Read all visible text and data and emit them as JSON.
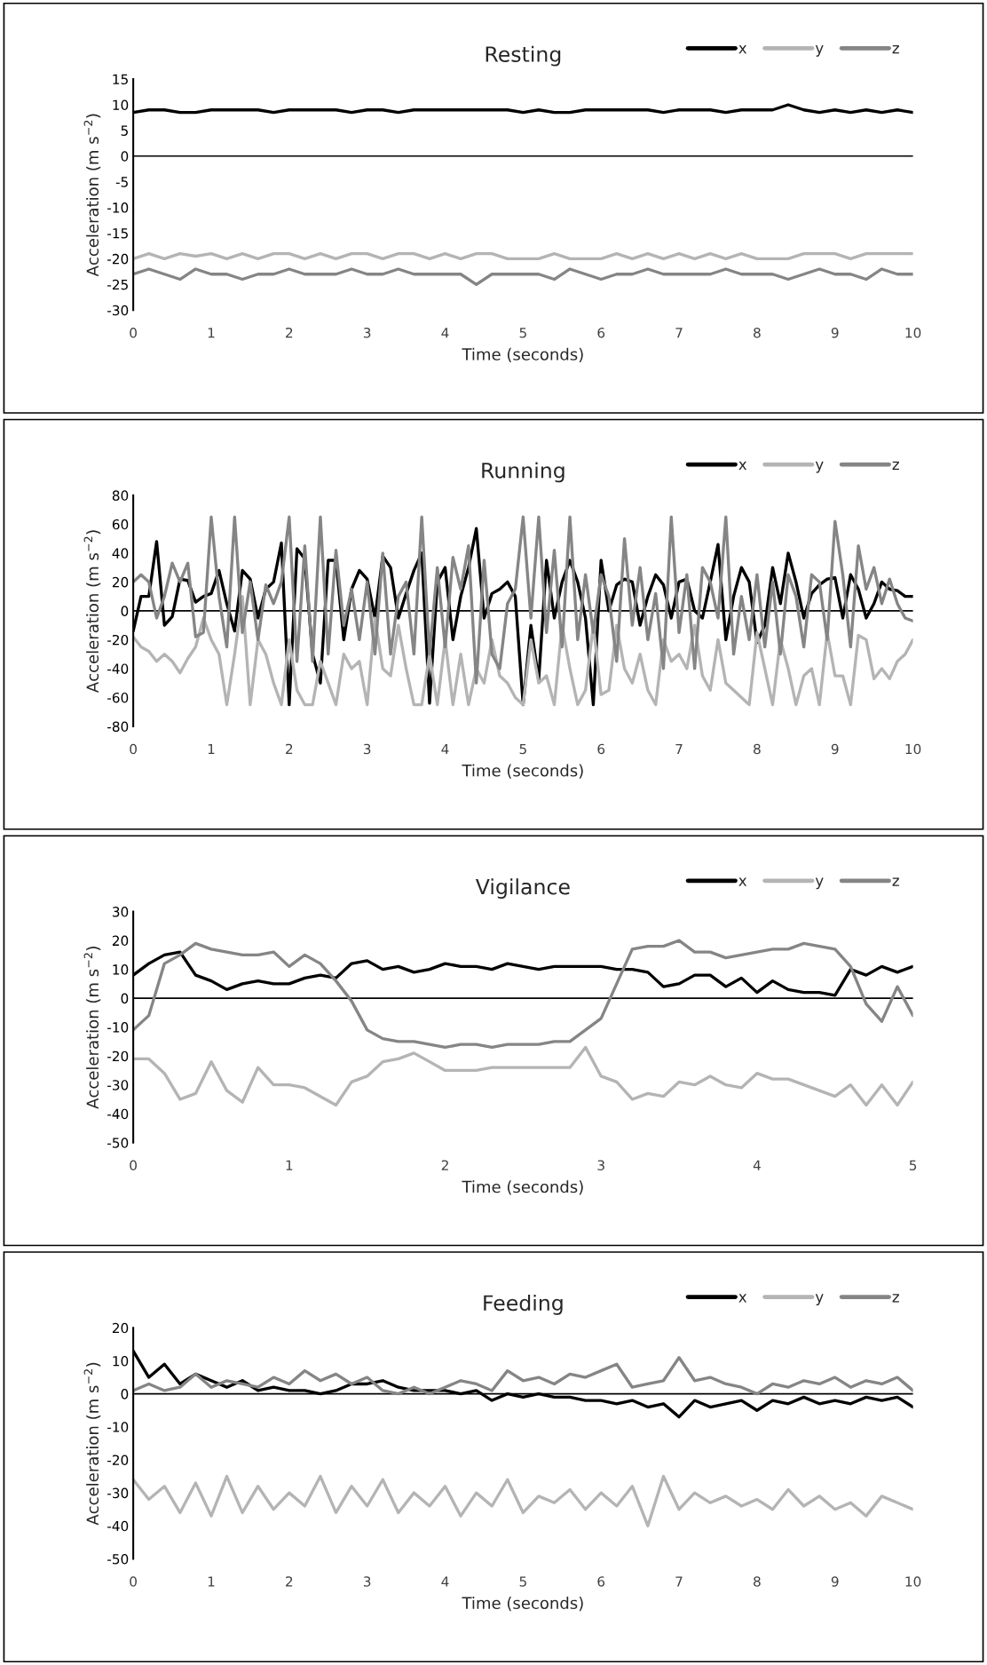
{
  "chart_data": [
    {
      "type": "line",
      "title": "Resting",
      "xlabel": "Time (seconds)",
      "ylabel": "Acceleration (m s$^{−2}$)",
      "xlim": [
        0,
        10
      ],
      "xticks": [
        0,
        1,
        2,
        3,
        4,
        5,
        6,
        7,
        8,
        9,
        10
      ],
      "ylim": [
        -30,
        15
      ],
      "yticks": [
        -30,
        -25,
        -20,
        -15,
        -10,
        -5,
        0,
        5,
        10,
        15
      ],
      "legend": "top right",
      "grid": false,
      "ref_lines": [
        {
          "axis": "y",
          "value": 0,
          "color": "#000000"
        }
      ],
      "x": [
        0,
        0.2,
        0.4,
        0.6,
        0.8,
        1,
        1.2,
        1.4,
        1.6,
        1.8,
        2,
        2.2,
        2.4,
        2.6,
        2.8,
        3,
        3.2,
        3.4,
        3.6,
        3.8,
        4,
        4.2,
        4.4,
        4.6,
        4.8,
        5,
        5.2,
        5.4,
        5.6,
        5.8,
        6,
        6.2,
        6.4,
        6.6,
        6.8,
        7,
        7.2,
        7.4,
        7.6,
        7.8,
        8,
        8.2,
        8.4,
        8.6,
        8.8,
        9,
        9.2,
        9.4,
        9.6,
        9.8,
        10
      ],
      "series": [
        {
          "name": "x",
          "color": "#000000",
          "values": [
            8.5,
            9,
            9,
            8.5,
            8.5,
            9,
            9,
            9,
            9,
            8.5,
            9,
            9,
            9,
            9,
            8.5,
            9,
            9,
            8.5,
            9,
            9,
            9,
            9,
            9,
            9,
            9,
            8.5,
            9,
            8.5,
            8.5,
            9,
            9,
            9,
            9,
            9,
            8.5,
            9,
            9,
            9,
            8.5,
            9,
            9,
            9,
            10,
            9,
            8.5,
            9,
            8.5,
            9,
            8.5,
            9,
            8.5
          ]
        },
        {
          "name": "y",
          "color": "#b4b4b4",
          "values": [
            -20,
            -19,
            -20,
            -19,
            -19.5,
            -19,
            -20,
            -19,
            -20,
            -19,
            -19,
            -20,
            -19,
            -20,
            -19,
            -19,
            -20,
            -19,
            -19,
            -20,
            -19,
            -20,
            -19,
            -19,
            -20,
            -20,
            -20,
            -19,
            -20,
            -20,
            -20,
            -19,
            -20,
            -19,
            -20,
            -19,
            -20,
            -19,
            -20,
            -19,
            -20,
            -20,
            -20,
            -19,
            -19,
            -19,
            -20,
            -19,
            -19,
            -19,
            -19
          ]
        },
        {
          "name": "z",
          "color": "#858585",
          "values": [
            -23,
            -22,
            -23,
            -24,
            -22,
            -23,
            -23,
            -24,
            -23,
            -23,
            -22,
            -23,
            -23,
            -23,
            -22,
            -23,
            -23,
            -22,
            -23,
            -23,
            -23,
            -23,
            -25,
            -23,
            -23,
            -23,
            -23,
            -24,
            -22,
            -23,
            -24,
            -23,
            -23,
            -22,
            -23,
            -23,
            -23,
            -23,
            -22,
            -23,
            -23,
            -23,
            -24,
            -23,
            -22,
            -23,
            -23,
            -24,
            -22,
            -23,
            -23
          ]
        }
      ]
    },
    {
      "type": "line",
      "title": "Running",
      "xlabel": "Time (seconds)",
      "ylabel": "Acceleration (m s$^{−2}$)",
      "xlim": [
        0,
        10
      ],
      "xticks": [
        0,
        1,
        2,
        3,
        4,
        5,
        6,
        7,
        8,
        9,
        10
      ],
      "ylim": [
        -80,
        80
      ],
      "yticks": [
        -80,
        -60,
        -40,
        -20,
        0,
        20,
        40,
        60,
        80
      ],
      "legend": "top right",
      "grid": false,
      "ref_lines": [
        {
          "axis": "y",
          "value": 0,
          "color": "#000000"
        }
      ],
      "x": [
        0,
        0.1,
        0.2,
        0.3,
        0.4,
        0.5,
        0.6,
        0.7,
        0.8,
        0.9,
        1,
        1.1,
        1.2,
        1.3,
        1.4,
        1.5,
        1.6,
        1.7,
        1.8,
        1.9,
        2,
        2.1,
        2.2,
        2.3,
        2.4,
        2.5,
        2.6,
        2.7,
        2.8,
        2.9,
        3,
        3.1,
        3.2,
        3.3,
        3.4,
        3.5,
        3.6,
        3.7,
        3.8,
        3.9,
        4,
        4.1,
        4.2,
        4.3,
        4.4,
        4.5,
        4.6,
        4.7,
        4.8,
        4.9,
        5,
        5.1,
        5.2,
        5.3,
        5.4,
        5.5,
        5.6,
        5.7,
        5.8,
        5.9,
        6,
        6.1,
        6.2,
        6.3,
        6.4,
        6.5,
        6.6,
        6.7,
        6.8,
        6.9,
        7,
        7.1,
        7.2,
        7.3,
        7.4,
        7.5,
        7.6,
        7.7,
        7.8,
        7.9,
        8,
        8.1,
        8.2,
        8.3,
        8.4,
        8.5,
        8.6,
        8.7,
        8.8,
        8.9,
        9,
        9.1,
        9.2,
        9.3,
        9.4,
        9.5,
        9.6,
        9.7,
        9.8,
        9.9,
        10
      ],
      "series": [
        {
          "name": "x",
          "color": "#000000",
          "values": [
            -14,
            10,
            10,
            48,
            -10,
            -4,
            22,
            21,
            6,
            10,
            12,
            28,
            5,
            -14,
            28,
            22,
            -5,
            15,
            20,
            47,
            -65,
            43,
            36,
            -30,
            -50,
            35,
            35,
            -20,
            15,
            28,
            22,
            -5,
            38,
            30,
            -5,
            12,
            28,
            40,
            -64,
            20,
            30,
            -20,
            10,
            30,
            57,
            -5,
            12,
            15,
            20,
            10,
            -65,
            -10,
            -48,
            35,
            -5,
            20,
            35,
            20,
            -5,
            -65,
            35,
            0,
            18,
            22,
            20,
            -10,
            10,
            25,
            18,
            -5,
            20,
            22,
            0,
            -5,
            20,
            46,
            -20,
            10,
            30,
            20,
            -22,
            -10,
            30,
            5,
            40,
            20,
            -5,
            12,
            18,
            22,
            23,
            -5,
            25,
            15,
            -5,
            5,
            20,
            15,
            14,
            10,
            10
          ]
        },
        {
          "name": "y",
          "color": "#b4b4b4",
          "values": [
            -18,
            -25,
            -28,
            -35,
            -30,
            -35,
            -43,
            -33,
            -25,
            -5,
            -20,
            -30,
            -65,
            -30,
            10,
            -65,
            -20,
            -30,
            -50,
            -65,
            -20,
            -55,
            -65,
            -65,
            -35,
            -50,
            -65,
            -30,
            -40,
            -35,
            -65,
            -5,
            -40,
            -45,
            -10,
            -40,
            -65,
            -65,
            -30,
            -65,
            -20,
            -65,
            -30,
            -65,
            -40,
            -50,
            -20,
            -45,
            -50,
            -60,
            -65,
            -20,
            -50,
            -45,
            -65,
            -10,
            -40,
            -65,
            -55,
            -10,
            -58,
            -55,
            -10,
            -40,
            -50,
            -30,
            -55,
            -65,
            -20,
            -35,
            -30,
            -40,
            -10,
            -45,
            -55,
            -20,
            -50,
            -55,
            -60,
            -65,
            -15,
            -40,
            -65,
            -20,
            -40,
            -65,
            -45,
            -40,
            -65,
            -15,
            -45,
            -45,
            -65,
            -17,
            -20,
            -47,
            -40,
            -47,
            -35,
            -30,
            -20
          ]
        },
        {
          "name": "z",
          "color": "#858585",
          "values": [
            20,
            25,
            20,
            -5,
            10,
            33,
            20,
            33,
            -18,
            -15,
            65,
            10,
            -25,
            65,
            -15,
            20,
            -20,
            18,
            5,
            20,
            65,
            -35,
            45,
            -35,
            65,
            -30,
            42,
            -10,
            15,
            -20,
            20,
            -30,
            40,
            -30,
            10,
            20,
            -30,
            65,
            -30,
            30,
            -25,
            37,
            15,
            45,
            -50,
            35,
            -30,
            -40,
            5,
            15,
            65,
            -5,
            65,
            -15,
            42,
            -25,
            65,
            -20,
            25,
            -15,
            25,
            10,
            -35,
            50,
            -10,
            30,
            -20,
            12,
            -40,
            65,
            -15,
            25,
            -40,
            30,
            20,
            -5,
            65,
            -30,
            10,
            -20,
            25,
            -25,
            20,
            -30,
            25,
            10,
            -25,
            25,
            20,
            -20,
            62,
            25,
            -25,
            45,
            15,
            30,
            5,
            22,
            5,
            -5,
            -7
          ]
        }
      ]
    },
    {
      "type": "line",
      "title": "Vigilance",
      "xlabel": "Time (seconds)",
      "ylabel": "Acceleration (m s$^{−2}$)",
      "xlim": [
        0,
        5
      ],
      "xticks": [
        0,
        1,
        2,
        3,
        4,
        5
      ],
      "ylim": [
        -50,
        30
      ],
      "yticks": [
        -50,
        -40,
        -30,
        -20,
        -10,
        0,
        10,
        20,
        30
      ],
      "legend": "top right",
      "grid": false,
      "ref_lines": [
        {
          "axis": "y",
          "value": 0,
          "color": "#000000"
        }
      ],
      "x": [
        0,
        0.1,
        0.2,
        0.3,
        0.4,
        0.5,
        0.6,
        0.7,
        0.8,
        0.9,
        1,
        1.1,
        1.2,
        1.3,
        1.4,
        1.5,
        1.6,
        1.7,
        1.8,
        1.9,
        2,
        2.1,
        2.2,
        2.3,
        2.4,
        2.5,
        2.6,
        2.7,
        2.8,
        2.9,
        3,
        3.1,
        3.2,
        3.3,
        3.4,
        3.5,
        3.6,
        3.7,
        3.8,
        3.9,
        4,
        4.1,
        4.2,
        4.3,
        4.4,
        4.5,
        4.6,
        4.7,
        4.8,
        4.9,
        5
      ],
      "series": [
        {
          "name": "x",
          "color": "#000000",
          "values": [
            8,
            12,
            15,
            16,
            8,
            6,
            3,
            5,
            6,
            5,
            5,
            7,
            8,
            7,
            12,
            13,
            10,
            11,
            9,
            10,
            12,
            11,
            11,
            10,
            12,
            11,
            10,
            11,
            11,
            11,
            11,
            10,
            10,
            9,
            4,
            5,
            8,
            8,
            4,
            7,
            2,
            6,
            3,
            2,
            2,
            1,
            10,
            8,
            11,
            9,
            11
          ]
        },
        {
          "name": "y",
          "color": "#b4b4b4",
          "values": [
            -21,
            -21,
            -26,
            -35,
            -33,
            -22,
            -32,
            -36,
            -24,
            -30,
            -30,
            -31,
            -34,
            -37,
            -29,
            -27,
            -22,
            -21,
            -19,
            -22,
            -25,
            -25,
            -25,
            -24,
            -24,
            -24,
            -24,
            -24,
            -24,
            -17,
            -27,
            -29,
            -35,
            -33,
            -34,
            -29,
            -30,
            -27,
            -30,
            -31,
            -26,
            -28,
            -28,
            -30,
            -32,
            -34,
            -30,
            -37,
            -30,
            -37,
            -29
          ]
        },
        {
          "name": "z",
          "color": "#858585",
          "values": [
            -11,
            -6,
            12,
            15,
            19,
            17,
            16,
            15,
            15,
            16,
            11,
            15,
            12,
            6,
            -1,
            -11,
            -14,
            -15,
            -15,
            -16,
            -17,
            -16,
            -16,
            -17,
            -16,
            -16,
            -16,
            -15,
            -15,
            -11,
            -7,
            5,
            17,
            18,
            18,
            20,
            16,
            16,
            14,
            15,
            16,
            17,
            17,
            19,
            18,
            17,
            11,
            -2,
            -8,
            4,
            -6
          ]
        }
      ]
    },
    {
      "type": "line",
      "title": "Feeding",
      "xlabel": "Time (seconds)",
      "ylabel": "Acceleration (m s$^{−2}$)",
      "xlim": [
        0,
        10
      ],
      "xticks": [
        0,
        1,
        2,
        3,
        4,
        5,
        6,
        7,
        8,
        9,
        10
      ],
      "ylim": [
        -50,
        20
      ],
      "yticks": [
        -50,
        -40,
        -30,
        -20,
        -10,
        0,
        10,
        20
      ],
      "legend": "top right",
      "grid": false,
      "ref_lines": [
        {
          "axis": "y",
          "value": 0,
          "color": "#000000"
        }
      ],
      "x": [
        0,
        0.2,
        0.4,
        0.6,
        0.8,
        1,
        1.2,
        1.4,
        1.6,
        1.8,
        2,
        2.2,
        2.4,
        2.6,
        2.8,
        3,
        3.2,
        3.4,
        3.6,
        3.8,
        4,
        4.2,
        4.4,
        4.6,
        4.8,
        5,
        5.2,
        5.4,
        5.6,
        5.8,
        6,
        6.2,
        6.4,
        6.6,
        6.8,
        7,
        7.2,
        7.4,
        7.6,
        7.8,
        8,
        8.2,
        8.4,
        8.6,
        8.8,
        9,
        9.2,
        9.4,
        9.6,
        9.8,
        10
      ],
      "series": [
        {
          "name": "x",
          "color": "#000000",
          "values": [
            13,
            5,
            9,
            3,
            6,
            4,
            2,
            4,
            1,
            2,
            1,
            1,
            0,
            1,
            3,
            3,
            4,
            2,
            1,
            1,
            1,
            0,
            1,
            -2,
            0,
            -1,
            0,
            -1,
            -1,
            -2,
            -2,
            -3,
            -2,
            -4,
            -3,
            -7,
            -2,
            -4,
            -3,
            -2,
            -5,
            -2,
            -3,
            -1,
            -3,
            -2,
            -3,
            -1,
            -2,
            -1,
            -4
          ]
        },
        {
          "name": "y",
          "color": "#b4b4b4",
          "values": [
            -26,
            -32,
            -28,
            -36,
            -27,
            -37,
            -25,
            -36,
            -28,
            -35,
            -30,
            -34,
            -25,
            -36,
            -28,
            -34,
            -26,
            -36,
            -30,
            -34,
            -28,
            -37,
            -30,
            -34,
            -26,
            -36,
            -31,
            -33,
            -29,
            -35,
            -30,
            -34,
            -28,
            -40,
            -25,
            -35,
            -30,
            -33,
            -31,
            -34,
            -32,
            -35,
            -29,
            -34,
            -31,
            -35,
            -33,
            -37,
            -31,
            -33,
            -35
          ]
        },
        {
          "name": "z",
          "color": "#858585",
          "values": [
            1,
            3,
            1,
            2,
            6,
            2,
            4,
            3,
            2,
            5,
            3,
            7,
            4,
            6,
            3,
            5,
            1,
            0,
            2,
            0,
            2,
            4,
            3,
            1,
            7,
            4,
            5,
            3,
            6,
            5,
            7,
            9,
            2,
            3,
            4,
            11,
            4,
            5,
            3,
            2,
            0,
            3,
            2,
            4,
            3,
            5,
            2,
            4,
            3,
            5,
            1
          ]
        }
      ]
    }
  ]
}
